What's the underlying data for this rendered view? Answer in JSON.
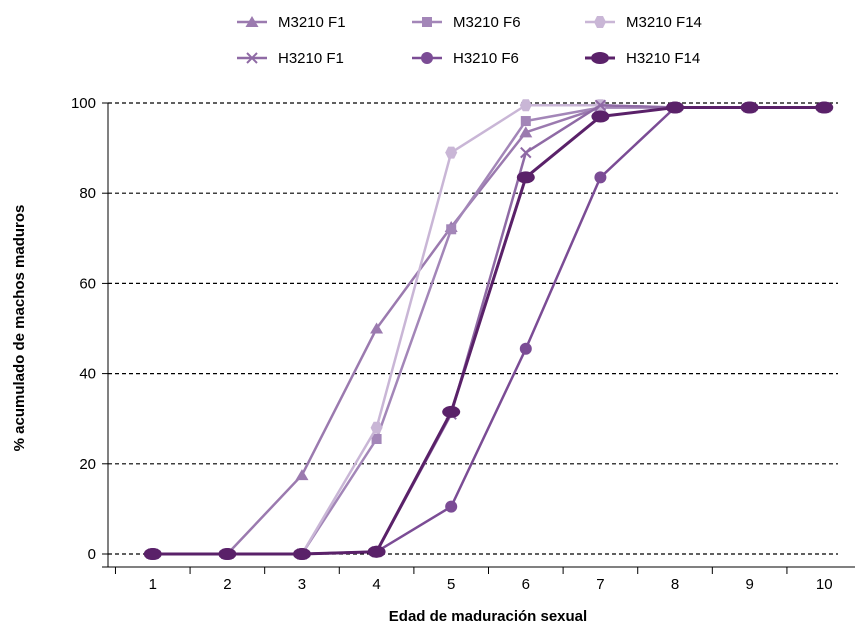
{
  "chart_data": {
    "type": "line",
    "xlabel": "Edad de maduración sexual",
    "ylabel": "% acumulado de machos maduros",
    "x": [
      1,
      2,
      3,
      4,
      5,
      6,
      7,
      8,
      9,
      10
    ],
    "xlim": [
      0.4,
      10.6
    ],
    "ylim": [
      0,
      100
    ],
    "yticks": [
      0,
      20,
      40,
      60,
      80,
      100
    ],
    "grid": "horizontal-dashed",
    "legend": "top",
    "series": [
      {
        "name": "M3210 F1",
        "marker": "triangle",
        "color": "#9b7aaf",
        "values": [
          0,
          0,
          17.5,
          50,
          72.5,
          93.5,
          99,
          99,
          99,
          99
        ]
      },
      {
        "name": "M3210 F6",
        "marker": "square",
        "color": "#a386b8",
        "values": [
          0,
          0,
          0,
          25.5,
          72,
          96,
          99,
          99,
          99,
          99
        ]
      },
      {
        "name": "M3210 F14",
        "marker": "hexagon",
        "color": "#c9b6d6",
        "values": [
          0,
          0,
          0,
          28,
          89,
          99.5,
          99.5,
          99,
          99,
          99
        ]
      },
      {
        "name": "H3210 F1",
        "marker": "x",
        "color": "#8f6aa5",
        "values": [
          0,
          0,
          0,
          0.5,
          31,
          89,
          99.5,
          99,
          99,
          99
        ]
      },
      {
        "name": "H3210 F6",
        "marker": "circle",
        "color": "#7b4c95",
        "values": [
          0,
          0,
          0,
          0.5,
          10.5,
          45.5,
          83.5,
          99,
          99,
          99
        ]
      },
      {
        "name": "H3210 F14",
        "marker": "ellipse",
        "color": "#5a2169",
        "values": [
          0,
          0,
          0,
          0.5,
          31.5,
          83.5,
          97,
          99,
          99,
          99
        ]
      }
    ]
  }
}
